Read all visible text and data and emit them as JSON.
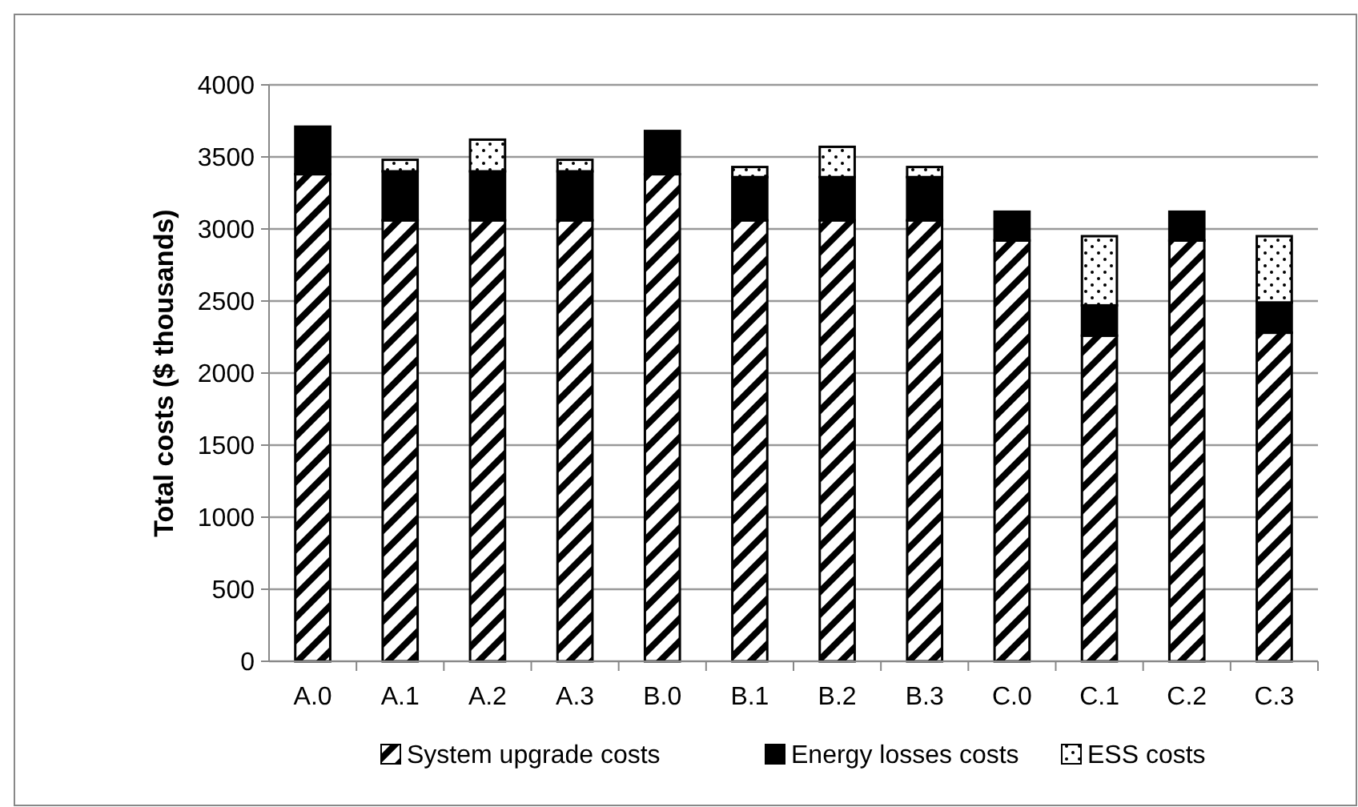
{
  "chart_data": {
    "type": "bar",
    "stacked": true,
    "ylabel": "Total costs ($ thousands)",
    "categories": [
      "A.0",
      "A.1",
      "A.2",
      "A.3",
      "B.0",
      "B.1",
      "B.2",
      "B.3",
      "C.0",
      "C.1",
      "C.2",
      "C.3"
    ],
    "series": [
      {
        "name": "System upgrade costs",
        "color": "#000000",
        "values": [
          3380,
          3060,
          3060,
          3060,
          3380,
          3060,
          3060,
          3060,
          2920,
          2260,
          2920,
          2280
        ]
      },
      {
        "name": "Energy losses costs",
        "color": "#000000",
        "values": [
          330,
          340,
          340,
          340,
          300,
          300,
          300,
          300,
          200,
          210,
          200,
          210
        ]
      },
      {
        "name": "ESS costs",
        "color": "#000000",
        "values": [
          0,
          80,
          220,
          80,
          0,
          70,
          210,
          70,
          0,
          480,
          0,
          460
        ]
      }
    ],
    "ylim": [
      0,
      4000
    ],
    "yticks": [
      0,
      500,
      1000,
      1500,
      2000,
      2500,
      3000,
      3500,
      4000
    ],
    "grid": "y",
    "legend": "bottom"
  }
}
